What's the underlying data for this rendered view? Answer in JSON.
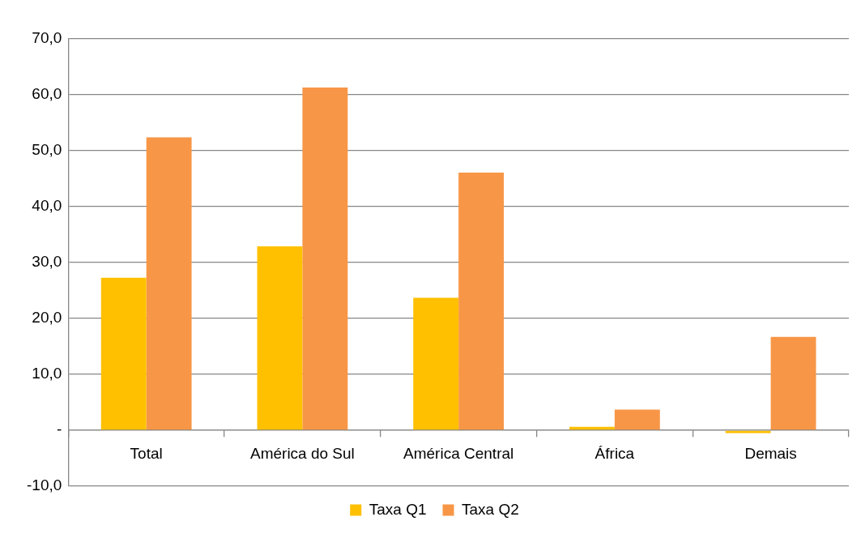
{
  "chart_data": {
    "type": "bar",
    "categories": [
      "Total",
      "América do Sul",
      "América Central",
      "África",
      "Demais"
    ],
    "series": [
      {
        "name": "Taxa Q1",
        "color": "#ffc000",
        "values": [
          27.3,
          32.9,
          23.7,
          0.6,
          -0.5
        ]
      },
      {
        "name": "Taxa Q2",
        "color": "#f79646",
        "values": [
          52.4,
          61.3,
          46.1,
          3.7,
          16.7
        ]
      }
    ],
    "ylim": [
      -10,
      70
    ],
    "yticks": [
      {
        "value": -10,
        "label": "-10,0"
      },
      {
        "value": 0,
        "label": "-"
      },
      {
        "value": 10,
        "label": "10,0"
      },
      {
        "value": 20,
        "label": "20,0"
      },
      {
        "value": 30,
        "label": "30,0"
      },
      {
        "value": 40,
        "label": "40,0"
      },
      {
        "value": 50,
        "label": "50,0"
      },
      {
        "value": 60,
        "label": "60,0"
      },
      {
        "value": 70,
        "label": "70,0"
      }
    ],
    "grid": "y",
    "legend": "bottom"
  }
}
